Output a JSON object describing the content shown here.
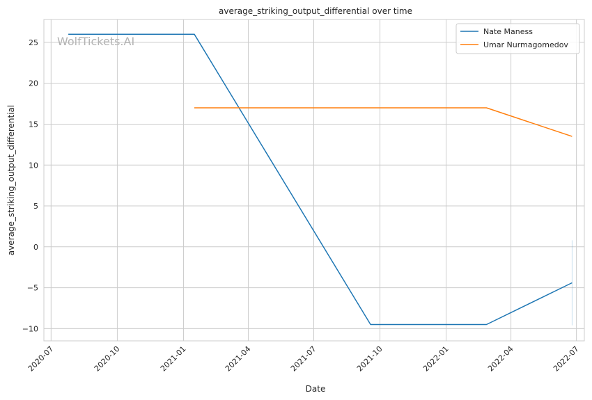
{
  "chart_data": {
    "type": "line",
    "title": "average_striking_output_differential over time",
    "xlabel": "Date",
    "ylabel": "average_striking_output_differential",
    "watermark": "WolfTickets.AI",
    "x_ticks": [
      {
        "date": "2020-07-01",
        "label": "2020-07"
      },
      {
        "date": "2020-10-01",
        "label": "2020-10"
      },
      {
        "date": "2021-01-01",
        "label": "2021-01"
      },
      {
        "date": "2021-04-01",
        "label": "2021-04"
      },
      {
        "date": "2021-07-01",
        "label": "2021-07"
      },
      {
        "date": "2021-10-01",
        "label": "2021-10"
      },
      {
        "date": "2022-01-01",
        "label": "2022-01"
      },
      {
        "date": "2022-04-01",
        "label": "2022-04"
      },
      {
        "date": "2022-07-01",
        "label": "2022-07"
      }
    ],
    "xlim": [
      "2020-06-21",
      "2022-07-12"
    ],
    "y_ticks": [
      25,
      20,
      15,
      10,
      5,
      0,
      -5,
      -10
    ],
    "ylim": [
      -11.5,
      27.8
    ],
    "grid": true,
    "legend_position": "top-right",
    "series": [
      {
        "name": "Nate Maness",
        "color": "#1f77b4",
        "points": [
          {
            "x": "2020-07-25",
            "y": 26.0
          },
          {
            "x": "2021-01-16",
            "y": 26.0
          },
          {
            "x": "2021-09-18",
            "y": -9.5
          },
          {
            "x": "2022-02-26",
            "y": -9.5
          },
          {
            "x": "2022-06-25",
            "y": -4.4
          }
        ]
      },
      {
        "name": "Umar Nurmagomedov",
        "color": "#ff7f0e",
        "points": [
          {
            "x": "2021-01-16",
            "y": 17.0
          },
          {
            "x": "2022-02-26",
            "y": 17.0
          },
          {
            "x": "2022-06-25",
            "y": 13.5
          }
        ]
      }
    ],
    "error_band": {
      "x": "2022-06-25",
      "y_low": -9.6,
      "y_high": 0.8,
      "color": "#1f77b4"
    }
  }
}
